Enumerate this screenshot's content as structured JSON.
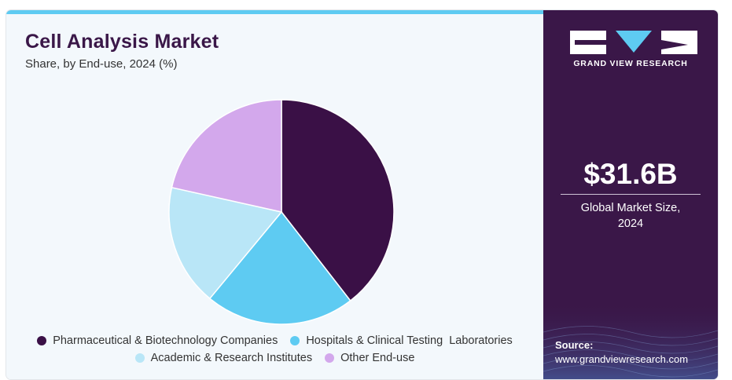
{
  "chart_data": {
    "type": "pie",
    "title": "Cell Analysis Market",
    "subtitle": "Share, by End-use, 2024 (%)",
    "slices": [
      {
        "name": "Pharmaceutical & Biotechnology Companies",
        "value": 39.5,
        "color": "#3a1046"
      },
      {
        "name": "Hospitals & Clinical Testing  Laboratories",
        "value": 21.5,
        "color": "#5ecbf2"
      },
      {
        "name": "Academic & Research Institutes",
        "value": 17.5,
        "color": "#b9e6f7"
      },
      {
        "name": "Other End-use",
        "value": 21.5,
        "color": "#d3a8ec"
      }
    ],
    "start_angle_deg": 0,
    "direction": "clockwise",
    "legend_position": "bottom"
  },
  "sidebar": {
    "brand": "GRAND VIEW RESEARCH",
    "market_size": "$31.6B",
    "market_size_caption_line1": "Global Market Size,",
    "market_size_caption_line2": "2024",
    "source_label": "Source:",
    "source_url": "www.grandviewresearch.com"
  },
  "colors": {
    "panel_dark": "#3a1748",
    "accent_bar": "#5ecbf2",
    "title_color": "#3a1748"
  }
}
